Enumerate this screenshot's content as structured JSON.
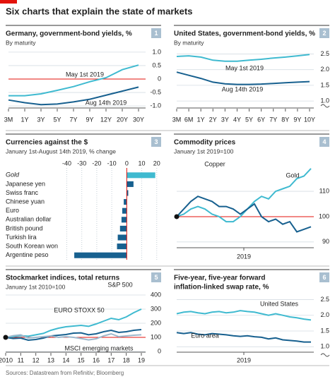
{
  "title": "Six charts that explain the state of markets",
  "source": "Sources: Datastream from Refinitiv; Bloomberg",
  "chart_data": [
    {
      "type": "line",
      "number": 1,
      "title": "Germany, government-bond yields, %",
      "subtitle": "By maturity",
      "categories": [
        "3M",
        "1Y",
        "3Y",
        "5Y",
        "7Y",
        "9Y",
        "12Y",
        "20Y",
        "30Y"
      ],
      "series": [
        {
          "name": "May 1st 2019",
          "color": "#3fbad0",
          "values": [
            -0.62,
            -0.62,
            -0.55,
            -0.42,
            -0.28,
            -0.1,
            0.05,
            0.35,
            0.52
          ]
        },
        {
          "name": "Aug 14th 2019",
          "color": "#17608f",
          "values": [
            -0.78,
            -0.88,
            -0.95,
            -0.93,
            -0.85,
            -0.75,
            -0.6,
            -0.45,
            -0.3
          ]
        }
      ],
      "ylim": [
        -1.05,
        1.05
      ],
      "yticks": [
        {
          "value": 1,
          "label": "1.0"
        },
        0.5,
        0,
        -0.5,
        {
          "value": -1,
          "label": "-1.0"
        }
      ],
      "ref_line": 0,
      "grid": true
    },
    {
      "type": "line",
      "number": 2,
      "title": "United States, government-bond yields, %",
      "subtitle": "By maturity",
      "categories": [
        "3M",
        "6M",
        "1Y",
        "2Y",
        "3Y",
        "4Y",
        "5Y",
        "6Y",
        "7Y",
        "8Y",
        "9Y",
        "10Y"
      ],
      "series": [
        {
          "name": "May 1st 2019",
          "color": "#3fbad0",
          "values": [
            2.42,
            2.44,
            2.4,
            2.3,
            2.27,
            2.27,
            2.3,
            2.33,
            2.37,
            2.4,
            2.44,
            2.48
          ]
        },
        {
          "name": "Aug 14th 2019",
          "color": "#17608f",
          "values": [
            1.92,
            1.82,
            1.72,
            1.6,
            1.55,
            1.53,
            1.53,
            1.54,
            1.56,
            1.58,
            1.6,
            1.62
          ]
        }
      ],
      "ylim": [
        0.8,
        2.6
      ],
      "yticks": [
        2.5,
        {
          "value": 2,
          "label": "2.0"
        },
        1.5,
        {
          "value": 1,
          "label": "1.0"
        }
      ],
      "grid": true
    },
    {
      "type": "hbar",
      "number": 3,
      "title": "Currencies against the $",
      "subtitle": "January 1st-August 14th 2019, % change",
      "categories": [
        "Gold",
        "Japanese yen",
        "Swiss franc",
        "Chinese yuan",
        "Euro",
        "Australian dollar",
        "British pound",
        "Turkish lira",
        "South Korean won",
        "Argentine peso"
      ],
      "values": [
        19,
        4.5,
        1,
        -2,
        -3,
        -3.5,
        -4.5,
        -6,
        -6.5,
        -35
      ],
      "colors": [
        "#3fbad0",
        "#17608f",
        "#17608f",
        "#17608f",
        "#17608f",
        "#17608f",
        "#17608f",
        "#17608f",
        "#17608f",
        "#17608f"
      ],
      "italic_index": 0,
      "xlim": [
        -44,
        22
      ],
      "xticks": [
        -40,
        -30,
        -20,
        -10,
        0,
        10,
        20
      ],
      "ref_line": 0,
      "grid": true
    },
    {
      "type": "line",
      "number": 4,
      "title": "Commodity prices",
      "subtitle": "January 1st 2019=100",
      "x_label": "2019",
      "series": [
        {
          "name": "Gold",
          "color": "#3fbad0",
          "values": [
            100,
            101,
            103,
            104,
            103,
            101,
            100,
            98,
            98,
            100,
            103,
            106,
            108,
            107,
            110,
            111,
            112,
            115,
            116,
            119
          ]
        },
        {
          "name": "Copper",
          "color": "#17608f",
          "values": [
            100,
            103,
            106,
            108,
            107,
            106,
            104,
            104,
            103,
            101,
            103,
            105,
            100,
            98,
            99,
            97,
            98,
            94,
            95,
            96
          ]
        }
      ],
      "ylim": [
        88,
        122
      ],
      "yticks": [
        110,
        100,
        90
      ],
      "ref_line": 100,
      "grid": true
    },
    {
      "type": "line",
      "number": 5,
      "title": "Stockmarket indices, total returns",
      "subtitle": "January 1st 2010=100",
      "categories": [
        "2010",
        null,
        "11",
        null,
        "12",
        null,
        "13",
        null,
        "14",
        null,
        "15",
        null,
        "16",
        null,
        "17",
        null,
        "18",
        null,
        "19"
      ],
      "series": [
        {
          "name": "S&P 500",
          "color": "#3fbad0",
          "values": [
            100,
            105,
            112,
            108,
            118,
            128,
            150,
            165,
            175,
            180,
            185,
            178,
            195,
            215,
            235,
            225,
            245,
            275,
            300
          ]
        },
        {
          "name": "EURO STOXX 50",
          "color": "#17608f",
          "values": [
            100,
            92,
            95,
            80,
            85,
            95,
            110,
            115,
            120,
            130,
            132,
            118,
            125,
            140,
            150,
            135,
            140,
            150,
            155
          ]
        },
        {
          "name": "MSCI emerging markets",
          "color": "#9db8cc",
          "values": [
            100,
            112,
            118,
            95,
            100,
            105,
            110,
            100,
            105,
            100,
            92,
            82,
            90,
            110,
            125,
            105,
            110,
            115,
            118
          ]
        }
      ],
      "ylim": [
        0,
        400
      ],
      "yticks": [
        400,
        300,
        200,
        100,
        0
      ],
      "ref_line": 100,
      "grid": true
    },
    {
      "type": "line",
      "number": 6,
      "title": [
        "Five-year, five-year forward",
        "inflation-linked swap rate, %"
      ],
      "x_label": "2019",
      "series": [
        {
          "name": "United States",
          "color": "#3fbad0",
          "values": [
            2.05,
            2.1,
            2.12,
            2.08,
            2.05,
            2.1,
            2.12,
            2.08,
            2.1,
            2.15,
            2.12,
            2.1,
            2.05,
            2.0,
            2.05,
            2.0,
            1.95,
            1.92,
            1.88,
            1.85
          ]
        },
        {
          "name": "Euro area",
          "color": "#17608f",
          "values": [
            1.45,
            1.42,
            1.45,
            1.4,
            1.38,
            1.42,
            1.4,
            1.38,
            1.35,
            1.33,
            1.35,
            1.32,
            1.3,
            1.25,
            1.28,
            1.22,
            1.2,
            1.18,
            1.15,
            1.15
          ]
        }
      ],
      "ylim": [
        0.85,
        2.6
      ],
      "yticks": [
        2.5,
        {
          "value": 2,
          "label": "2.0"
        },
        1.5,
        {
          "value": 1,
          "label": "1.0"
        }
      ],
      "grid": true
    }
  ]
}
